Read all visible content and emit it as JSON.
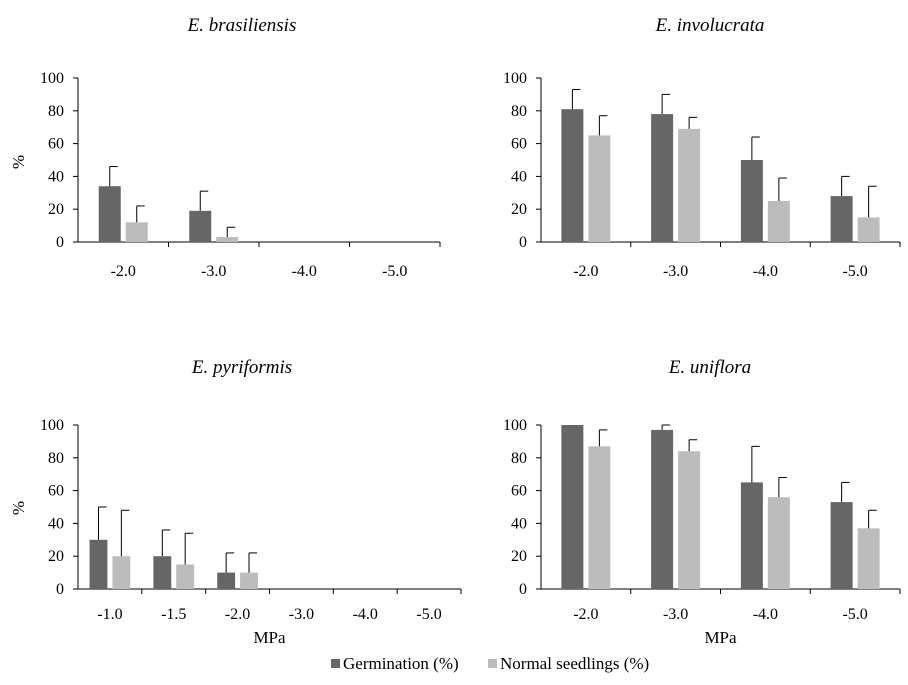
{
  "colors": {
    "germination": "#666666",
    "normal_seedlings": "#bcbcbc",
    "axis": "#000000",
    "error_bar": "#000000"
  },
  "legend": {
    "items": [
      {
        "key": "germination",
        "label": "Germination (%)"
      },
      {
        "key": "normal_seedlings",
        "label": "Normal seedlings (%)"
      }
    ],
    "placement": "bottom-center"
  },
  "chart_data": [
    {
      "type": "bar",
      "title": "E. brasiliensis",
      "xlabel": "",
      "ylabel": "%",
      "ylim": [
        0,
        100
      ],
      "yticks": [
        0,
        20,
        40,
        60,
        80,
        100
      ],
      "categories": [
        "-2.0",
        "-3.0",
        "-4.0",
        "-5.0"
      ],
      "series": [
        {
          "name": "Germination (%)",
          "values": [
            34,
            19,
            0,
            0
          ],
          "errors": [
            12,
            12,
            0,
            0
          ]
        },
        {
          "name": "Normal seedlings (%)",
          "values": [
            12,
            3,
            0,
            0
          ],
          "errors": [
            10,
            6,
            0,
            0
          ]
        }
      ],
      "grid": false
    },
    {
      "type": "bar",
      "title": "E. involucrata",
      "xlabel": "",
      "ylabel": "",
      "ylim": [
        0,
        100
      ],
      "yticks": [
        0,
        20,
        40,
        60,
        80,
        100
      ],
      "categories": [
        "-2.0",
        "-3.0",
        "-4.0",
        "-5.0"
      ],
      "series": [
        {
          "name": "Germination (%)",
          "values": [
            81,
            78,
            50,
            28
          ],
          "errors": [
            12,
            12,
            14,
            12
          ]
        },
        {
          "name": "Normal seedlings (%)",
          "values": [
            65,
            69,
            25,
            15
          ],
          "errors": [
            12,
            7,
            14,
            19
          ]
        }
      ],
      "grid": false
    },
    {
      "type": "bar",
      "title": "E. pyriformis",
      "xlabel": "MPa",
      "ylabel": "%",
      "ylim": [
        0,
        100
      ],
      "yticks": [
        0,
        20,
        40,
        60,
        80,
        100
      ],
      "categories": [
        "-1.0",
        "-1.5",
        "-2.0",
        "-3.0",
        "-4.0",
        "-5.0"
      ],
      "series": [
        {
          "name": "Germination (%)",
          "values": [
            30,
            20,
            10,
            0,
            0,
            0
          ],
          "errors": [
            20,
            16,
            12,
            0,
            0,
            0
          ]
        },
        {
          "name": "Normal seedlings (%)",
          "values": [
            20,
            15,
            10,
            0,
            0,
            0
          ],
          "errors": [
            28,
            19,
            12,
            0,
            0,
            0
          ]
        }
      ],
      "grid": false
    },
    {
      "type": "bar",
      "title": "E. uniflora",
      "xlabel": "MPa",
      "ylabel": "",
      "ylim": [
        0,
        100
      ],
      "yticks": [
        0,
        20,
        40,
        60,
        80,
        100
      ],
      "categories": [
        "-2.0",
        "-3.0",
        "-4.0",
        "-5.0"
      ],
      "series": [
        {
          "name": "Germination (%)",
          "values": [
            100,
            97,
            65,
            53
          ],
          "errors": [
            0,
            3,
            22,
            12
          ]
        },
        {
          "name": "Normal seedlings (%)",
          "values": [
            87,
            84,
            56,
            37
          ],
          "errors": [
            10,
            7,
            12,
            11
          ]
        }
      ],
      "grid": false
    }
  ]
}
